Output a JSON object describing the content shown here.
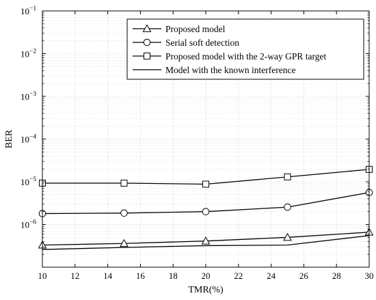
{
  "chart_data": {
    "type": "line",
    "xlabel": "TMR(%)",
    "ylabel": "BER",
    "x_scale": "linear",
    "y_scale": "log",
    "xlim": [
      10,
      30
    ],
    "ylim": [
      1e-07,
      0.1
    ],
    "x_ticks": [
      10,
      12,
      14,
      16,
      18,
      20,
      22,
      24,
      26,
      28,
      30
    ],
    "y_ticks": [
      {
        "value": 1e-06,
        "base": "10",
        "exp": "−6"
      },
      {
        "value": 1e-05,
        "base": "10",
        "exp": "−5"
      },
      {
        "value": 0.0001,
        "base": "10",
        "exp": "−4"
      },
      {
        "value": 0.001,
        "base": "10",
        "exp": "−3"
      },
      {
        "value": 0.01,
        "base": "10",
        "exp": "−2"
      },
      {
        "value": 0.1,
        "base": "10",
        "exp": "−1"
      }
    ],
    "grid": true,
    "minor_grid": true,
    "legend_position": "top-right",
    "series": [
      {
        "name": "Proposed model",
        "marker": "triangle",
        "x": [
          10,
          15,
          20,
          25,
          30
        ],
        "y": [
          3.3e-07,
          3.6e-07,
          4.1e-07,
          5e-07,
          6.6e-07
        ]
      },
      {
        "name": "Serial soft detection",
        "marker": "circle",
        "x": [
          10,
          15,
          20,
          25,
          30
        ],
        "y": [
          1.8e-06,
          1.85e-06,
          2e-06,
          2.55e-06,
          5.6e-06
        ]
      },
      {
        "name": "Proposed model with the 2-way GPR target",
        "marker": "square",
        "x": [
          10,
          15,
          20,
          25,
          30
        ],
        "y": [
          9.3e-06,
          9.3e-06,
          8.8e-06,
          1.3e-05,
          1.95e-05
        ]
      },
      {
        "name": "Model with the known interference",
        "marker": "none",
        "x": [
          10,
          15,
          20,
          25,
          30
        ],
        "y": [
          2.6e-07,
          2.9e-07,
          3.2e-07,
          3.3e-07,
          5.5e-07
        ]
      }
    ],
    "line_color": "#000000",
    "grid_color": "#d2d2d2"
  }
}
